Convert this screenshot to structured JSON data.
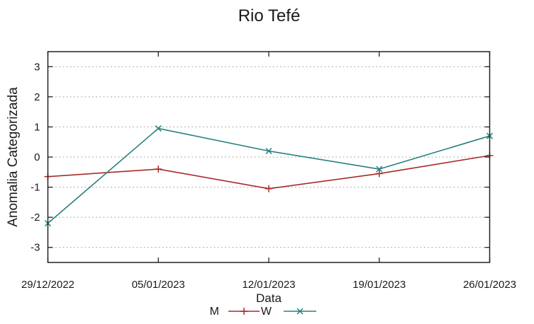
{
  "title": "Rio Tefé",
  "colors": {
    "background": "#ffffff",
    "border": "#222222",
    "grid": "#aaaaaa",
    "text": "#1a1a1a",
    "series_m": "#a62b28",
    "series_w": "#26807f"
  },
  "chart_data": {
    "type": "line",
    "title": "Rio Tefé",
    "xlabel": "Data",
    "ylabel": "Anomalia Categorizada",
    "categories": [
      "29/12/2022",
      "05/01/2023",
      "12/01/2023",
      "19/01/2023",
      "26/01/2023"
    ],
    "y_ticks": [
      3,
      2,
      1,
      0,
      -1,
      -2,
      -3
    ],
    "ylim": [
      -3.5,
      3.5
    ],
    "grid": "horizontal dotted gridlines at integer y ticks",
    "legend_position": "bottom-center",
    "series": [
      {
        "name": "M",
        "marker": "plus",
        "color": "#a62b28",
        "values": [
          -0.65,
          -0.4,
          -1.05,
          -0.55,
          0.05
        ]
      },
      {
        "name": "W",
        "marker": "cross",
        "color": "#26807f",
        "values": [
          -2.2,
          0.95,
          0.2,
          -0.4,
          0.7
        ]
      }
    ]
  }
}
